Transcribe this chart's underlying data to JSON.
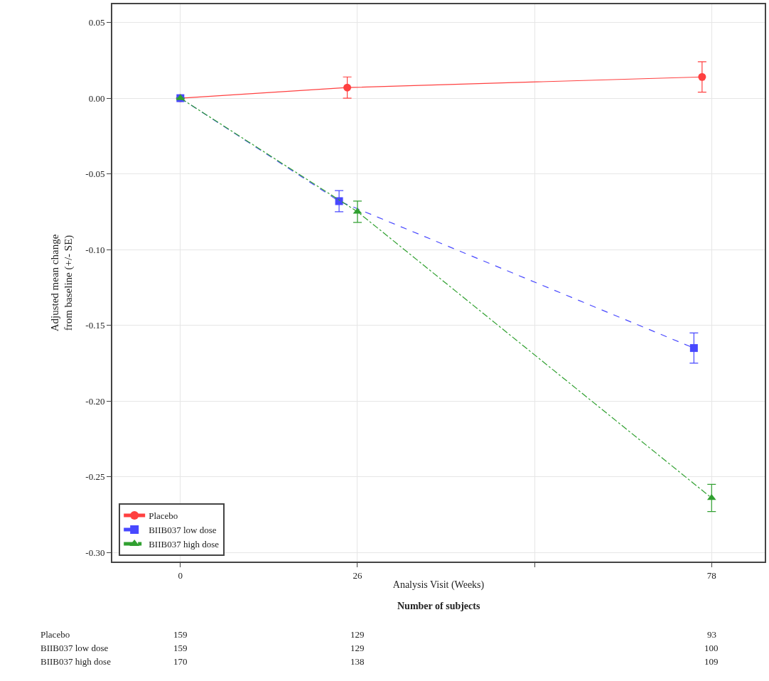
{
  "chart_data": {
    "type": "line",
    "xlabel": "Analysis Visit (Weeks)",
    "ylabel": "Adjusted mean change\nfrom baseline (+/- SE)",
    "xlim": [
      -10,
      85.8
    ],
    "xticks": [
      0,
      26,
      {
        "value": 52,
        "label": null
      },
      78
    ],
    "ylim": [
      -0.306,
      0.062
    ],
    "yticks": [
      {
        "value": -0.3,
        "label": "-0.30"
      },
      {
        "value": -0.25,
        "label": "-0.25"
      },
      {
        "value": -0.2,
        "label": "-0.20"
      },
      {
        "value": -0.15,
        "label": "-0.15"
      },
      {
        "value": -0.1,
        "label": "-0.10"
      },
      {
        "value": -0.05,
        "label": "-0.05"
      },
      {
        "value": 0,
        "label": "0.00"
      },
      {
        "value": 0.05,
        "label": "0.05"
      }
    ],
    "grid": true,
    "legend": "bottom left",
    "series": [
      {
        "name": "Placebo",
        "color": "#ff4040",
        "marker": "circle",
        "line_style": "solid",
        "x": [
          0,
          24.5,
          76.6
        ],
        "values": [
          0,
          0.007,
          0.014
        ],
        "errors": [
          null,
          0.007,
          0.01
        ]
      },
      {
        "name": "BIIB037 low dose",
        "color": "#4848ff",
        "marker": "square",
        "line_style": "dashed",
        "x": [
          0,
          23.3,
          75.4
        ],
        "values": [
          0,
          -0.068,
          -0.165
        ],
        "errors": [
          null,
          0.007,
          0.01
        ]
      },
      {
        "name": "BIIB037 high dose",
        "color": "#30a030",
        "marker": "triangle",
        "line_style": "dashdot",
        "x": [
          0,
          26,
          78
        ],
        "values": [
          0,
          -0.075,
          -0.264
        ],
        "errors": [
          null,
          0.007,
          0.009
        ]
      }
    ],
    "annotations": [
      "Number of subjects",
      "Placebo",
      "159",
      "129",
      "93",
      "BIIB037 low dose",
      "159",
      "129",
      "100",
      "BIIB037 high dose",
      "170",
      "138",
      "109"
    ]
  }
}
